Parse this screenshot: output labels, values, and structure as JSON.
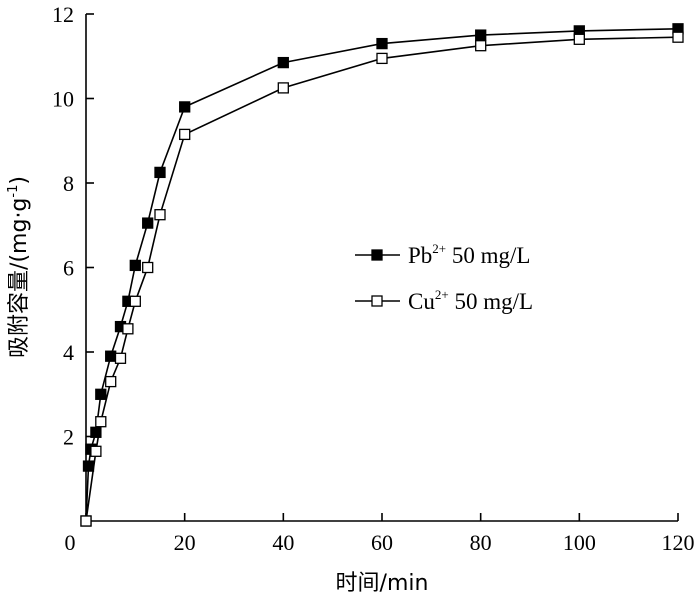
{
  "chart_data": {
    "type": "line",
    "title": "",
    "xlabel": "时间/min",
    "ylabel": "吸附容量/(mg·g",
    "ylabel_sup": "-1",
    "ylabel_close": ")",
    "xlim": [
      0,
      120
    ],
    "ylim": [
      0,
      12
    ],
    "xticks": [
      0,
      20,
      40,
      60,
      80,
      100,
      120
    ],
    "yticks": [
      0,
      2,
      4,
      6,
      8,
      10,
      12
    ],
    "grid": false,
    "legend_position": "center-right",
    "series": [
      {
        "name": "Pb 50 mg/L",
        "legend_base": "Pb",
        "legend_sup": "2+",
        "legend_rest": " 50 mg/L",
        "marker": "filled-square",
        "x": [
          0,
          0.5,
          1,
          2,
          3,
          5,
          7,
          8.5,
          10,
          12.5,
          15,
          20,
          40,
          60,
          80,
          100,
          120
        ],
        "y": [
          0,
          1.3,
          1.7,
          2.1,
          3.0,
          3.9,
          4.6,
          5.2,
          6.05,
          7.05,
          8.25,
          9.8,
          10.85,
          11.3,
          11.5,
          11.6,
          11.65
        ]
      },
      {
        "name": "Cu 50 mg/L",
        "legend_base": "Cu",
        "legend_sup": "2+",
        "legend_rest": " 50 mg/L",
        "marker": "open-square",
        "x": [
          0,
          2,
          3,
          5,
          7,
          8.5,
          10,
          12.5,
          15,
          20,
          40,
          60,
          80,
          100,
          120
        ],
        "y": [
          0,
          1.65,
          2.35,
          3.3,
          3.85,
          4.55,
          5.2,
          6.0,
          7.25,
          9.15,
          10.25,
          10.95,
          11.25,
          11.4,
          11.45
        ]
      }
    ]
  }
}
